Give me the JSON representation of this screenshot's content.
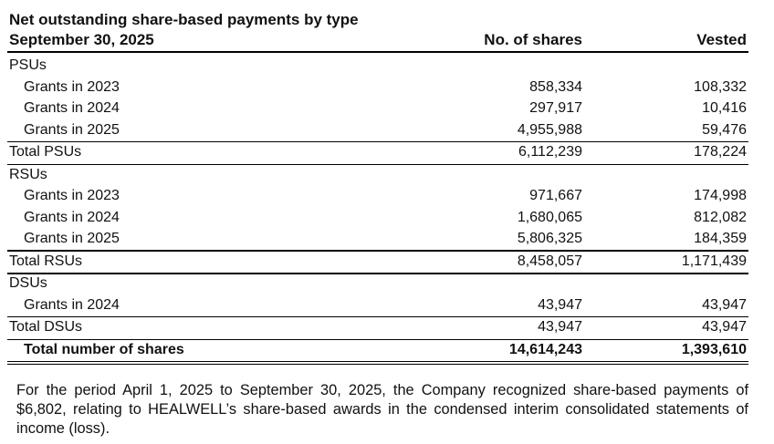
{
  "header": {
    "title": "Net outstanding share-based payments by type",
    "date": "September 30, 2025",
    "shares_heading": "No. of shares",
    "vested_heading": "Vested"
  },
  "table": {
    "sections": [
      {
        "title": "PSUs",
        "grants": [
          {
            "label": "Grants in 2023",
            "shares": "858,334",
            "vested": "108,332"
          },
          {
            "label": "Grants in 2024",
            "shares": "297,917",
            "vested": "10,416"
          },
          {
            "label": "Grants in 2025",
            "shares": "4,955,988",
            "vested": "59,476"
          }
        ],
        "total": {
          "label": "Total PSUs",
          "shares": "6,112,239",
          "vested": "178,224"
        }
      },
      {
        "title": "RSUs",
        "grants": [
          {
            "label": "Grants in 2023",
            "shares": "971,667",
            "vested": "174,998"
          },
          {
            "label": "Grants in 2024",
            "shares": "1,680,065",
            "vested": "812,082"
          },
          {
            "label": "Grants in 2025",
            "shares": "5,806,325",
            "vested": "184,359"
          }
        ],
        "total": {
          "label": "Total RSUs",
          "shares": "8,458,057",
          "vested": "1,171,439"
        }
      },
      {
        "title": "DSUs",
        "grants": [
          {
            "label": "Grants in 2024",
            "shares": "43,947",
            "vested": "43,947"
          }
        ],
        "total": {
          "label": "Total DSUs",
          "shares": "43,947",
          "vested": "43,947"
        }
      }
    ],
    "grand_total": {
      "label": "Total number of shares",
      "shares": "14,614,243",
      "vested": "1,393,610"
    }
  },
  "note": "For the period April 1, 2025 to September 30, 2025, the Company recognized share-based payments of $6,802, relating to HEALWELL’s share-based awards in the condensed interim consolidated statements of income (loss)."
}
